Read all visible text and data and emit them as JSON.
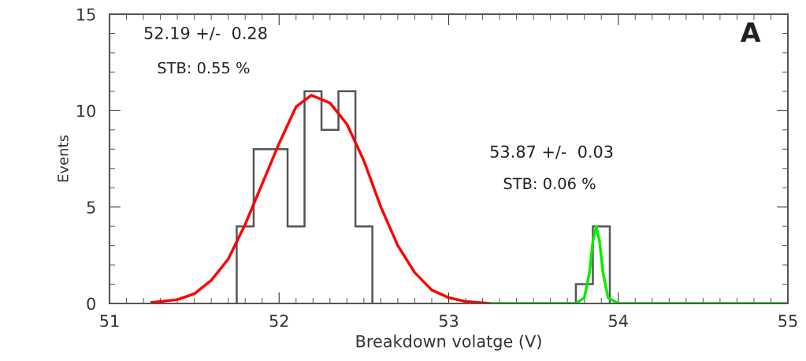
{
  "chart_data": {
    "type": "histogram",
    "xlabel": "Breakdown volatge (V)",
    "ylabel": "Events",
    "xlim": [
      51,
      55
    ],
    "xticks": [
      51,
      52,
      53,
      54,
      55
    ],
    "ylim": [
      0,
      15
    ],
    "yticks": [
      0,
      5,
      10,
      15
    ],
    "grid": false,
    "annotations": [
      "52.19 +/-  0.28",
      "STB: 0.55 %",
      "53.87 +/-  0.03",
      "STB: 0.06 %",
      "A"
    ],
    "series": [
      {
        "color": "#555555",
        "bins": [
          51.75,
          51.85,
          51.95,
          52.05,
          52.15,
          52.25,
          52.35,
          52.45,
          52.55
        ],
        "values": [
          4,
          8,
          8,
          4,
          11,
          9,
          11,
          4
        ]
      },
      {
        "color": "#555555",
        "bins": [
          53.75,
          53.85,
          53.95
        ],
        "values": [
          1,
          4
        ]
      },
      {
        "type": "line",
        "color": "#ff0000",
        "x": [
          51.25,
          51.4,
          51.5,
          51.6,
          51.7,
          51.8,
          51.9,
          52.0,
          52.1,
          52.19,
          52.3,
          52.4,
          52.5,
          52.6,
          52.7,
          52.8,
          52.9,
          53.0,
          53.1,
          53.25
        ],
        "values": [
          0.05,
          0.2,
          0.5,
          1.2,
          2.3,
          4.1,
          6.2,
          8.3,
          10.2,
          10.8,
          10.4,
          9.3,
          7.4,
          5.0,
          3.0,
          1.6,
          0.7,
          0.3,
          0.1,
          0.0
        ]
      },
      {
        "type": "line",
        "color": "#00ee00",
        "x": [
          53.25,
          53.75,
          53.8,
          53.83,
          53.85,
          53.87,
          53.89,
          53.91,
          53.94,
          54.0,
          55.0
        ],
        "values": [
          0,
          0,
          0.3,
          1.6,
          3.2,
          4.0,
          3.2,
          1.6,
          0.3,
          0,
          0
        ]
      }
    ]
  }
}
